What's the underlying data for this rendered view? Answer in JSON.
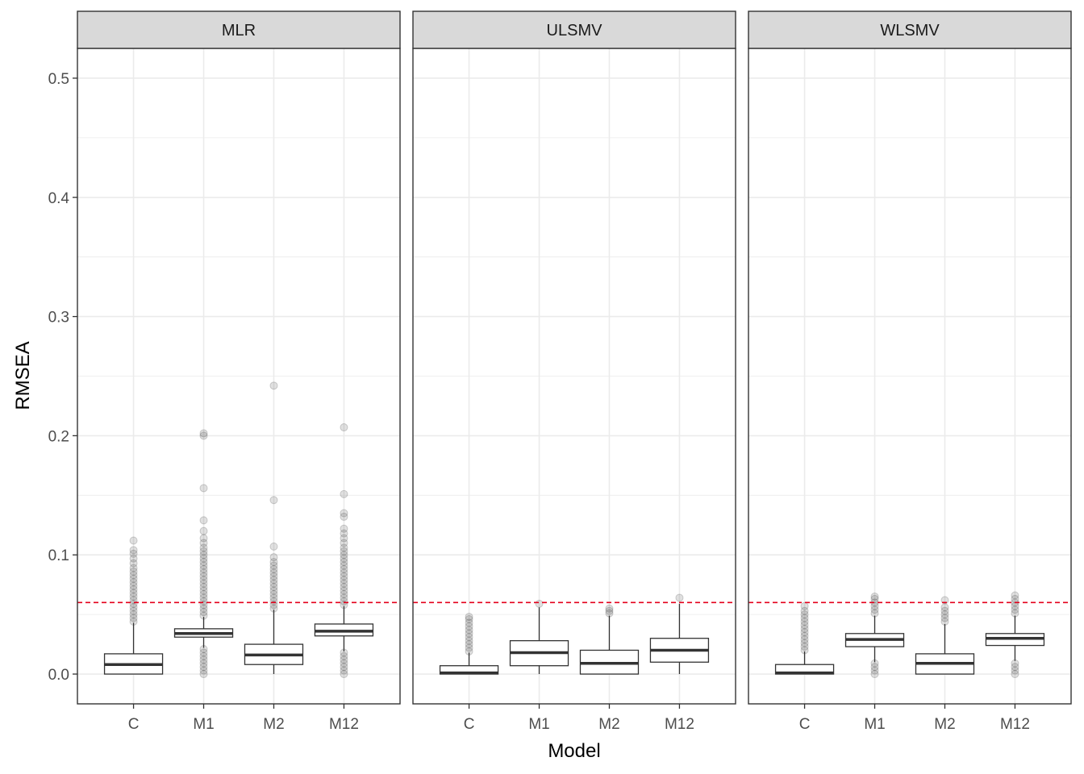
{
  "chart_data": {
    "type": "boxplot",
    "xlabel": "Model",
    "ylabel": "RMSEA",
    "ylim": [
      -0.025,
      0.525
    ],
    "y_ticks": [
      0.0,
      0.1,
      0.2,
      0.3,
      0.4,
      0.5
    ],
    "y_tick_labels": [
      "0.0",
      "0.1",
      "0.2",
      "0.3",
      "0.4",
      "0.5"
    ],
    "categories": [
      "C",
      "M1",
      "M2",
      "M12"
    ],
    "reference_line": {
      "value": 0.06,
      "color": "#e3001b",
      "style": "dashed"
    },
    "grid": true,
    "colors": {
      "strip_bg": "#d9d9d9",
      "box_line": "#333333",
      "outlier": "#333333",
      "grid": "#ebebeb"
    },
    "panels": [
      {
        "label": "MLR",
        "boxes": [
          {
            "category": "C",
            "min": 0.0,
            "q1": 0.0,
            "median": 0.008,
            "q3": 0.017,
            "max": 0.043,
            "outliers": [
              0.044,
              0.047,
              0.05,
              0.053,
              0.056,
              0.059,
              0.062,
              0.065,
              0.068,
              0.071,
              0.074,
              0.077,
              0.08,
              0.083,
              0.086,
              0.089,
              0.093,
              0.097,
              0.101,
              0.104,
              0.112
            ]
          },
          {
            "category": "M1",
            "min": 0.022,
            "q1": 0.031,
            "median": 0.034,
            "q3": 0.038,
            "max": 0.048,
            "outliers": [
              0.0,
              0.003,
              0.006,
              0.009,
              0.012,
              0.015,
              0.018,
              0.021,
              0.049,
              0.052,
              0.055,
              0.058,
              0.061,
              0.064,
              0.067,
              0.07,
              0.073,
              0.076,
              0.079,
              0.082,
              0.085,
              0.088,
              0.091,
              0.094,
              0.097,
              0.1,
              0.103,
              0.106,
              0.11,
              0.114,
              0.12,
              0.129,
              0.156,
              0.2,
              0.202
            ]
          },
          {
            "category": "M2",
            "min": 0.0,
            "q1": 0.008,
            "median": 0.016,
            "q3": 0.025,
            "max": 0.054,
            "outliers": [
              0.055,
              0.058,
              0.061,
              0.064,
              0.067,
              0.07,
              0.073,
              0.076,
              0.079,
              0.082,
              0.085,
              0.088,
              0.091,
              0.094,
              0.098,
              0.107,
              0.146,
              0.242
            ]
          },
          {
            "category": "M12",
            "min": 0.019,
            "q1": 0.032,
            "median": 0.036,
            "q3": 0.042,
            "max": 0.057,
            "outliers": [
              0.0,
              0.003,
              0.006,
              0.009,
              0.012,
              0.015,
              0.018,
              0.058,
              0.061,
              0.064,
              0.067,
              0.07,
              0.073,
              0.076,
              0.079,
              0.082,
              0.085,
              0.088,
              0.091,
              0.094,
              0.097,
              0.1,
              0.103,
              0.106,
              0.11,
              0.114,
              0.118,
              0.122,
              0.132,
              0.135,
              0.151,
              0.207
            ]
          }
        ]
      },
      {
        "label": "ULSMV",
        "boxes": [
          {
            "category": "C",
            "min": 0.0,
            "q1": 0.0,
            "median": 0.001,
            "q3": 0.007,
            "max": 0.018,
            "outliers": [
              0.019,
              0.022,
              0.025,
              0.028,
              0.031,
              0.034,
              0.037,
              0.04,
              0.043,
              0.046,
              0.048
            ]
          },
          {
            "category": "M1",
            "min": 0.0,
            "q1": 0.007,
            "median": 0.018,
            "q3": 0.028,
            "max": 0.056,
            "outliers": [
              0.059
            ]
          },
          {
            "category": "M2",
            "min": 0.0,
            "q1": 0.0,
            "median": 0.009,
            "q3": 0.02,
            "max": 0.049,
            "outliers": [
              0.051,
              0.053,
              0.055
            ]
          },
          {
            "category": "M12",
            "min": 0.0,
            "q1": 0.01,
            "median": 0.02,
            "q3": 0.03,
            "max": 0.059,
            "outliers": [
              0.064
            ]
          }
        ]
      },
      {
        "label": "WLSMV",
        "boxes": [
          {
            "category": "C",
            "min": 0.0,
            "q1": 0.0,
            "median": 0.001,
            "q3": 0.008,
            "max": 0.019,
            "outliers": [
              0.02,
              0.023,
              0.026,
              0.029,
              0.032,
              0.035,
              0.038,
              0.041,
              0.044,
              0.047,
              0.05,
              0.053,
              0.057
            ]
          },
          {
            "category": "M1",
            "min": 0.01,
            "q1": 0.023,
            "median": 0.029,
            "q3": 0.034,
            "max": 0.049,
            "outliers": [
              0.0,
              0.003,
              0.006,
              0.009,
              0.051,
              0.054,
              0.057,
              0.06,
              0.063,
              0.065
            ]
          },
          {
            "category": "M2",
            "min": 0.0,
            "q1": 0.0,
            "median": 0.009,
            "q3": 0.017,
            "max": 0.042,
            "outliers": [
              0.044,
              0.047,
              0.05,
              0.053,
              0.056,
              0.062
            ]
          },
          {
            "category": "M12",
            "min": 0.011,
            "q1": 0.024,
            "median": 0.03,
            "q3": 0.034,
            "max": 0.049,
            "outliers": [
              0.0,
              0.003,
              0.006,
              0.009,
              0.051,
              0.054,
              0.057,
              0.06,
              0.063,
              0.066
            ]
          }
        ]
      }
    ]
  }
}
